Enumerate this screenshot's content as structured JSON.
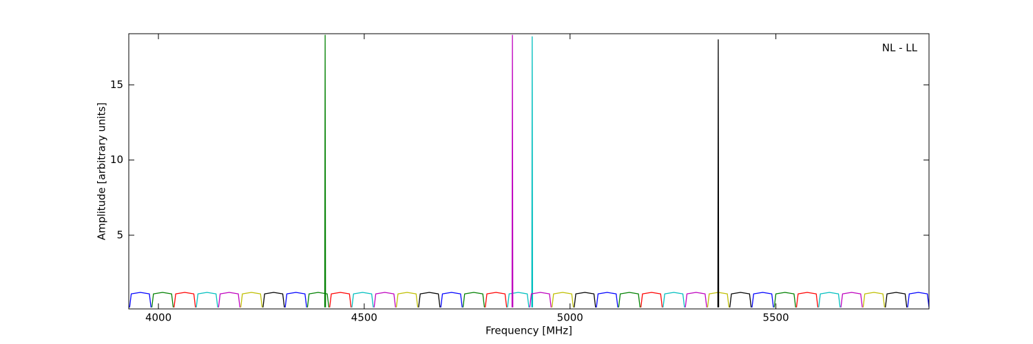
{
  "chart_data": {
    "type": "line",
    "xlabel": "Frequency [MHz]",
    "ylabel": "Amplitude [arbitrary units]",
    "annotation": "NL - LL",
    "xlim": [
      3928,
      5872
    ],
    "ylim": [
      0.1,
      18.4
    ],
    "xticks": [
      4000,
      4500,
      5000,
      5500
    ],
    "yticks": [
      5,
      10,
      15
    ],
    "series": [
      {
        "color": "#0000ff",
        "x": [
          3930,
          3934,
          3956,
          3978,
          3982,
          null,
          4308,
          4312,
          4334,
          4356,
          4360,
          null,
          4686,
          4690,
          4712,
          4734,
          4738,
          null,
          5064,
          5068,
          5090,
          5112,
          5116,
          null,
          5442,
          5446,
          5468,
          5490,
          5494,
          null,
          5820,
          5824,
          5846,
          5868,
          5872
        ],
        "values": [
          0.2,
          1.1,
          1.2,
          1.1,
          0.2,
          null,
          0.2,
          1.1,
          1.2,
          1.1,
          0.2,
          null,
          0.2,
          1.1,
          1.2,
          1.1,
          0.2,
          null,
          0.2,
          1.1,
          1.2,
          1.1,
          0.2,
          null,
          0.2,
          1.1,
          1.2,
          1.1,
          0.2,
          null,
          0.2,
          1.1,
          1.2,
          1.1,
          0.2
        ]
      },
      {
        "color": "#008000",
        "x": [
          3984,
          3988,
          4010,
          4032,
          4036,
          null,
          4362,
          4366,
          4388,
          4410,
          4414,
          null,
          4740,
          4744,
          4766,
          4788,
          4792,
          null,
          5118,
          5122,
          5144,
          5166,
          5170,
          null,
          5496,
          5500,
          5522,
          5544,
          5548,
          null,
          4404,
          4405,
          4406
        ],
        "values": [
          0.2,
          1.1,
          1.2,
          1.1,
          0.2,
          null,
          0.2,
          1.1,
          1.2,
          1.1,
          0.2,
          null,
          0.2,
          1.1,
          1.2,
          1.1,
          0.2,
          null,
          0.2,
          1.1,
          1.2,
          1.1,
          0.2,
          null,
          0.2,
          1.1,
          1.2,
          1.1,
          0.2,
          null,
          0.2,
          18.3,
          0.2
        ]
      },
      {
        "color": "#ff0000",
        "x": [
          4038,
          4042,
          4064,
          4086,
          4090,
          null,
          4416,
          4420,
          4442,
          4464,
          4468,
          null,
          4794,
          4798,
          4820,
          4842,
          4846,
          null,
          5172,
          5176,
          5198,
          5220,
          5224,
          null,
          5550,
          5554,
          5576,
          5598,
          5602
        ],
        "values": [
          0.2,
          1.1,
          1.2,
          1.1,
          0.2,
          null,
          0.2,
          1.1,
          1.2,
          1.1,
          0.2,
          null,
          0.2,
          1.1,
          1.2,
          1.1,
          0.2,
          null,
          0.2,
          1.1,
          1.2,
          1.1,
          0.2,
          null,
          0.2,
          1.1,
          1.2,
          1.1,
          0.2
        ]
      },
      {
        "color": "#00bfbf",
        "x": [
          4092,
          4096,
          4118,
          4140,
          4144,
          null,
          4470,
          4474,
          4496,
          4518,
          4522,
          null,
          4848,
          4852,
          4874,
          4896,
          4900,
          null,
          5226,
          5230,
          5252,
          5274,
          5278,
          null,
          5604,
          5608,
          5630,
          5652,
          5656,
          null,
          4907,
          4908,
          4909
        ],
        "values": [
          0.2,
          1.1,
          1.2,
          1.1,
          0.2,
          null,
          0.2,
          1.1,
          1.2,
          1.1,
          0.2,
          null,
          0.2,
          1.1,
          1.2,
          1.1,
          0.2,
          null,
          0.2,
          1.1,
          1.2,
          1.1,
          0.2,
          null,
          0.2,
          1.1,
          1.2,
          1.1,
          0.2,
          null,
          0.2,
          18.2,
          0.2
        ]
      },
      {
        "color": "#bf00bf",
        "x": [
          4146,
          4150,
          4172,
          4194,
          4198,
          null,
          4524,
          4528,
          4550,
          4572,
          4576,
          null,
          4902,
          4906,
          4928,
          4950,
          4954,
          null,
          5280,
          5284,
          5306,
          5328,
          5332,
          null,
          5658,
          5662,
          5684,
          5706,
          5710,
          null,
          4859,
          4860,
          4861
        ],
        "values": [
          0.2,
          1.1,
          1.2,
          1.1,
          0.2,
          null,
          0.2,
          1.1,
          1.2,
          1.1,
          0.2,
          null,
          0.2,
          1.1,
          1.2,
          1.1,
          0.2,
          null,
          0.2,
          1.1,
          1.2,
          1.1,
          0.2,
          null,
          0.2,
          1.1,
          1.2,
          1.1,
          0.2,
          null,
          0.2,
          18.3,
          0.2
        ]
      },
      {
        "color": "#bfbf00",
        "x": [
          4200,
          4204,
          4226,
          4248,
          4252,
          null,
          4578,
          4582,
          4604,
          4626,
          4630,
          null,
          4956,
          4960,
          4982,
          5004,
          5008,
          null,
          5334,
          5338,
          5360,
          5382,
          5386,
          null,
          5712,
          5716,
          5738,
          5760,
          5764
        ],
        "values": [
          0.2,
          1.1,
          1.2,
          1.1,
          0.2,
          null,
          0.2,
          1.1,
          1.2,
          1.1,
          0.2,
          null,
          0.2,
          1.1,
          1.2,
          1.1,
          0.2,
          null,
          0.2,
          1.1,
          1.2,
          1.1,
          0.2,
          null,
          0.2,
          1.1,
          1.2,
          1.1,
          0.2
        ]
      },
      {
        "color": "#000000",
        "x": [
          4254,
          4258,
          4280,
          4302,
          4306,
          null,
          4632,
          4636,
          4658,
          4680,
          4684,
          null,
          5010,
          5014,
          5036,
          5058,
          5062,
          null,
          5388,
          5392,
          5414,
          5436,
          5440,
          null,
          5766,
          5770,
          5792,
          5814,
          5818,
          null,
          5359,
          5360,
          5361
        ],
        "values": [
          0.2,
          1.1,
          1.2,
          1.1,
          0.2,
          null,
          0.2,
          1.1,
          1.2,
          1.1,
          0.2,
          null,
          0.2,
          1.1,
          1.2,
          1.1,
          0.2,
          null,
          0.2,
          1.1,
          1.2,
          1.1,
          0.2,
          null,
          0.2,
          1.1,
          1.2,
          1.1,
          0.2,
          null,
          0.2,
          18.0,
          0.2
        ]
      }
    ]
  }
}
